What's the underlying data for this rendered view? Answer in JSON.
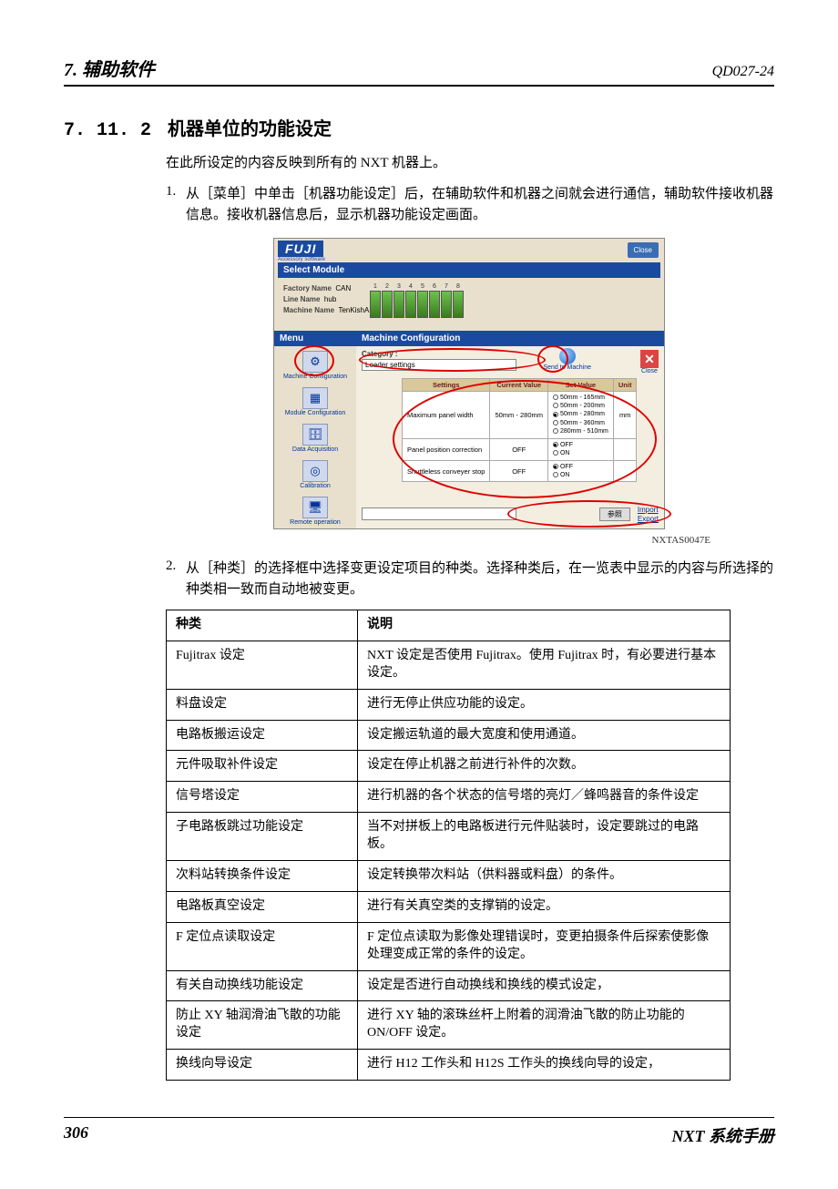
{
  "header": {
    "chapter": "7.  辅助软件",
    "doc_code": "QD027-24"
  },
  "section": {
    "number": "7. 11. 2",
    "title": "机器单位的功能设定",
    "intro": "在此所设定的内容反映到所有的 NXT 机器上。",
    "step1_num": "1.",
    "step1": "从［菜单］中单击［机器功能设定］后，在辅助软件和机器之间就会进行通信，辅助软件接收机器信息。接收机器信息后，显示机器功能设定画面。",
    "step2_num": "2.",
    "step2": "从［种类］的选择框中选择变更设定项目的种类。选择种类后，在一览表中显示的内容与所选择的种类相一致而自动地被变更。"
  },
  "screenshot": {
    "logo": "FUJI",
    "logo_sub": "Accessory software",
    "close_top": "Close",
    "select_module": "Select Module",
    "labels": {
      "factory": "Factory Name",
      "factory_v": "CAN",
      "line": "Line Name",
      "line_v": "hub",
      "machine": "Machine Name",
      "machine_v": "TenKishA"
    },
    "module_nums": [
      "1",
      "2",
      "3",
      "4",
      "5",
      "6",
      "7",
      "8"
    ],
    "menu_head": "Menu",
    "menu_items": [
      {
        "icon": "⚙",
        "label": "Machine Configuration"
      },
      {
        "icon": "▦",
        "label": "Module Configuration"
      },
      {
        "icon": "🗄",
        "label": "Data Acquisition"
      },
      {
        "icon": "◎",
        "label": "Calibration"
      },
      {
        "icon": "🖥",
        "label": "Remote operation"
      }
    ],
    "cfg_head": "Machine Configuration",
    "category_label": "Category :",
    "category_value": "Loader settings",
    "send_label": "Send to Machine",
    "close_label": "Close",
    "tbl_head": {
      "settings": "Settings",
      "current": "Current Value",
      "set": "Set Value",
      "unit": "Unit"
    },
    "rows": [
      {
        "name": "Maximum panel width",
        "current": "50mm - 280mm",
        "options": [
          "50mm - 165mm",
          "50mm - 200mm",
          "50mm - 280mm",
          "50mm - 360mm",
          "280mm - 510mm"
        ],
        "sel": 2,
        "unit": "mm"
      },
      {
        "name": "Panel position correction",
        "current": "OFF",
        "options": [
          "OFF",
          "ON"
        ],
        "sel": 0,
        "unit": ""
      },
      {
        "name": "Shuttleless conveyer stop",
        "current": "OFF",
        "options": [
          "OFF",
          "ON"
        ],
        "sel": 0,
        "unit": ""
      }
    ],
    "browse": "参照",
    "import": "Import",
    "export": "Export",
    "image_id": "NXTAS0047E"
  },
  "table": {
    "head": {
      "cat": "种类",
      "desc": "说明"
    },
    "rows": [
      {
        "c": "Fujitrax 设定",
        "d": "NXT 设定是否使用 Fujitrax。使用 Fujitrax 时，有必要进行基本设定。"
      },
      {
        "c": "料盘设定",
        "d": "进行无停止供应功能的设定。"
      },
      {
        "c": "电路板搬运设定",
        "d": "设定搬运轨道的最大宽度和使用通道。"
      },
      {
        "c": "元件吸取补件设定",
        "d": "设定在停止机器之前进行补件的次数。"
      },
      {
        "c": "信号塔设定",
        "d": "进行机器的各个状态的信号塔的亮灯／蜂鸣器音的条件设定"
      },
      {
        "c": "子电路板跳过功能设定",
        "d": "当不对拼板上的电路板进行元件贴装时，设定要跳过的电路板。"
      },
      {
        "c": "次料站转换条件设定",
        "d": "设定转换带次料站（供料器或料盘）的条件。"
      },
      {
        "c": "电路板真空设定",
        "d": "进行有关真空类的支撑销的设定。"
      },
      {
        "c": "F 定位点读取设定",
        "d": "F 定位点读取为影像处理错误时，变更拍摄条件后探索使影像处理变成正常的条件的设定。"
      },
      {
        "c": "有关自动换线功能设定",
        "d": "设定是否进行自动换线和换线的模式设定，"
      },
      {
        "c": "防止 XY 轴润滑油飞散的功能设定",
        "d": "进行 XY 轴的滚珠丝杆上附着的润滑油飞散的防止功能的 ON/OFF 设定。"
      },
      {
        "c": "换线向导设定",
        "d": "进行 H12 工作头和 H12S 工作头的换线向导的设定，"
      }
    ]
  },
  "footer": {
    "page": "306",
    "manual": "NXT 系统手册"
  }
}
